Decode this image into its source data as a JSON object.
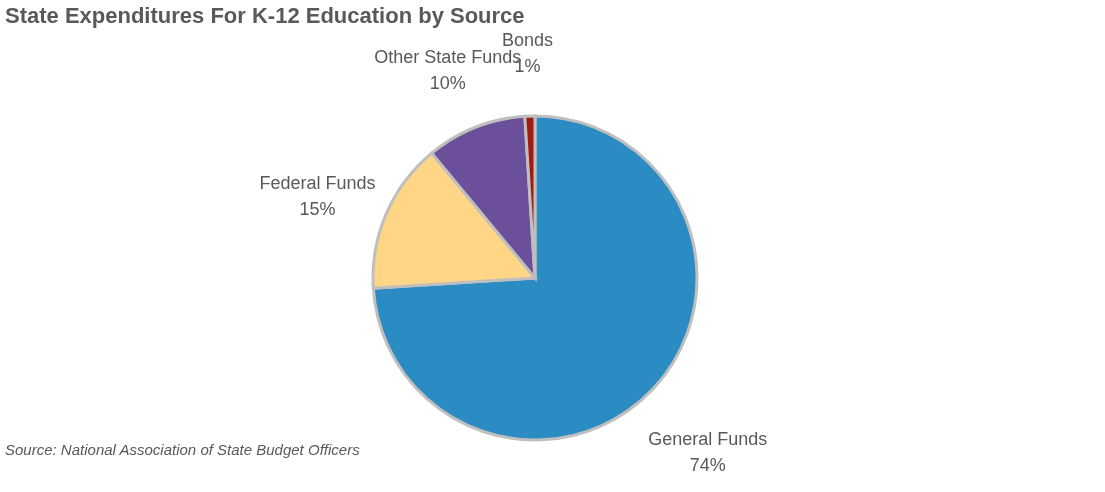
{
  "chart_data": {
    "type": "pie",
    "title": "State Expenditures For K-12 Education by Source",
    "categories": [
      "General Funds",
      "Federal Funds",
      "Other State Funds",
      "Bonds"
    ],
    "values": [
      74,
      15,
      10,
      1
    ],
    "value_labels": [
      "74%",
      "15%",
      "10%",
      "1%"
    ],
    "colors": [
      "#2b8bc3",
      "#ffd685",
      "#6b4f9b",
      "#a01c12"
    ],
    "legend": false,
    "annotations": [
      "Source: National Association of State Budget Officers"
    ]
  }
}
